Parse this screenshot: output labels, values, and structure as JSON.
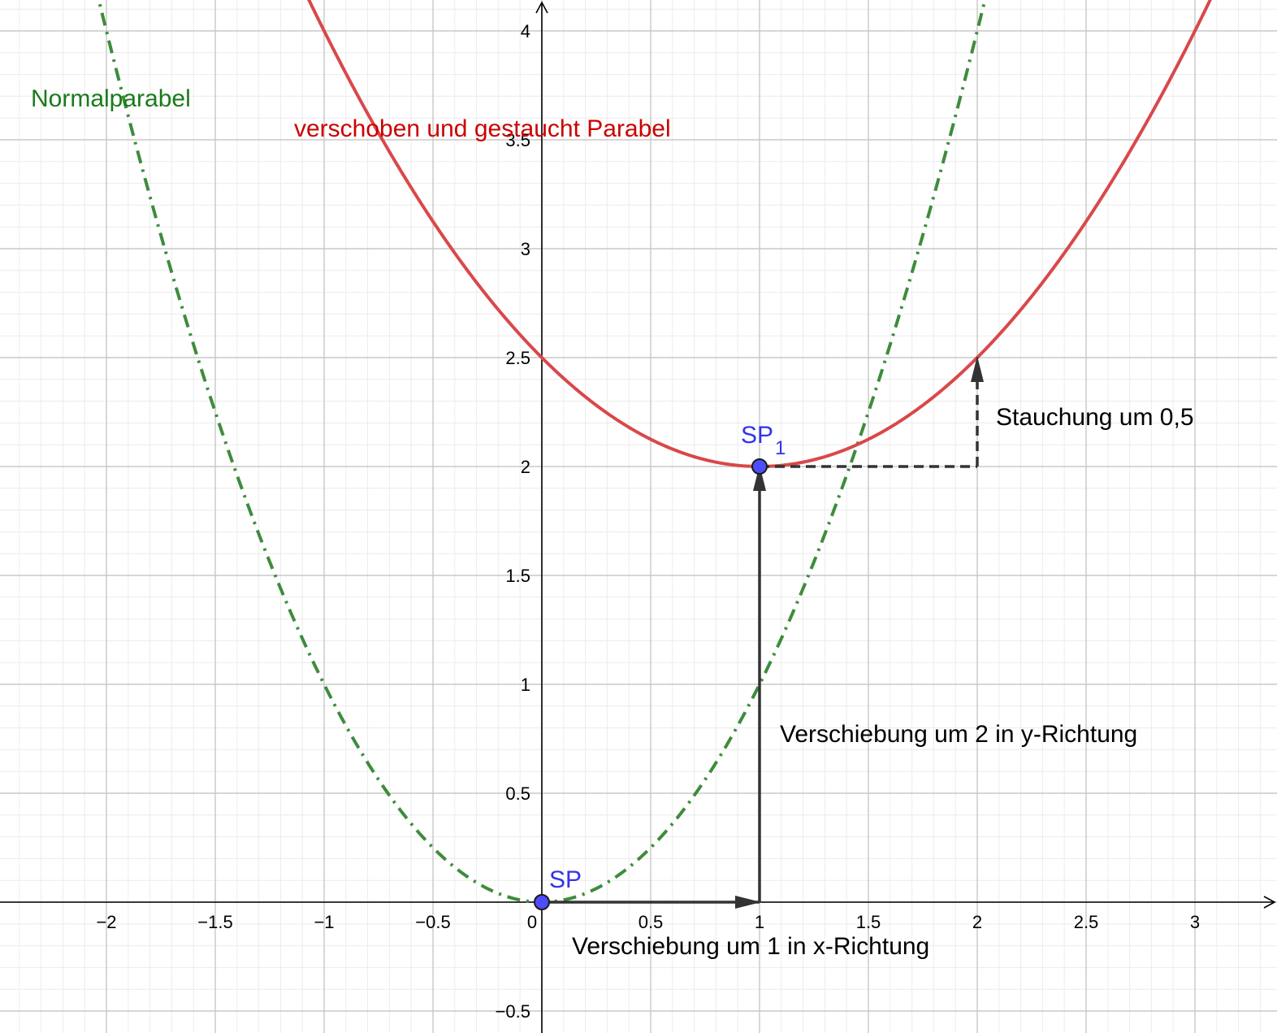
{
  "chart_data": {
    "type": "line",
    "xlim": [
      -2.5,
      3.35
    ],
    "ylim": [
      -0.57,
      4.13
    ],
    "grid": true,
    "x_ticks": [
      {
        "value": -2,
        "label": "−2"
      },
      {
        "value": -1.5,
        "label": "−1.5"
      },
      {
        "value": -1,
        "label": "−1"
      },
      {
        "value": -0.5,
        "label": "−0.5"
      },
      {
        "value": 0,
        "label": "0"
      },
      {
        "value": 0.5,
        "label": "0.5"
      },
      {
        "value": 1,
        "label": "1"
      },
      {
        "value": 1.5,
        "label": "1.5"
      },
      {
        "value": 2,
        "label": "2"
      },
      {
        "value": 2.5,
        "label": "2.5"
      },
      {
        "value": 3,
        "label": "3"
      }
    ],
    "y_ticks": [
      {
        "value": -0.5,
        "label": "−0.5"
      },
      {
        "value": 0.5,
        "label": "0.5"
      },
      {
        "value": 1,
        "label": "1"
      },
      {
        "value": 1.5,
        "label": "1.5"
      },
      {
        "value": 2,
        "label": "2"
      },
      {
        "value": 2.5,
        "label": "2.5"
      },
      {
        "value": 3,
        "label": "3"
      },
      {
        "value": 3.5,
        "label": "3.5"
      },
      {
        "value": 4,
        "label": "4"
      }
    ],
    "series": [
      {
        "name": "Normalparabel",
        "formula": "y = x^2",
        "a": 1,
        "h": 0,
        "k": 0,
        "color": "#3d8c3d",
        "style": "dash-dot"
      },
      {
        "name": "verschoben und gestaucht Parabel",
        "formula": "y = 0.5(x-1)^2 + 2",
        "a": 0.5,
        "h": 1,
        "k": 2,
        "color": "#d9484a",
        "style": "solid"
      }
    ],
    "points": [
      {
        "label": "SP",
        "subscript": "",
        "x": 0,
        "y": 0,
        "color": "#4d4dff"
      },
      {
        "label": "SP",
        "subscript": "1",
        "x": 1,
        "y": 2,
        "color": "#4d4dff"
      }
    ],
    "arrows": [
      {
        "from": [
          0,
          0
        ],
        "to": [
          1,
          0
        ],
        "style": "solid"
      },
      {
        "from": [
          1,
          0
        ],
        "to": [
          1,
          2
        ],
        "style": "solid"
      },
      {
        "from": [
          2,
          2
        ],
        "to": [
          2,
          2.5
        ],
        "style": "dashed"
      }
    ],
    "segments": [
      {
        "from": [
          1,
          2
        ],
        "to": [
          2,
          2
        ],
        "style": "dashed"
      }
    ],
    "annotations": {
      "normal": "Normalparabel",
      "shifted": "verschoben und gestaucht Parabel",
      "x_shift": "Verschiebung um 1 in x-Richtung",
      "y_shift": "Verschiebung um 2 in y-Richtung",
      "compression": "Stauchung um 0,5"
    },
    "colors": {
      "normal_label": "#1a7a1a",
      "shifted_label": "#cc0000",
      "text": "#000000",
      "arrow": "#333333"
    }
  }
}
